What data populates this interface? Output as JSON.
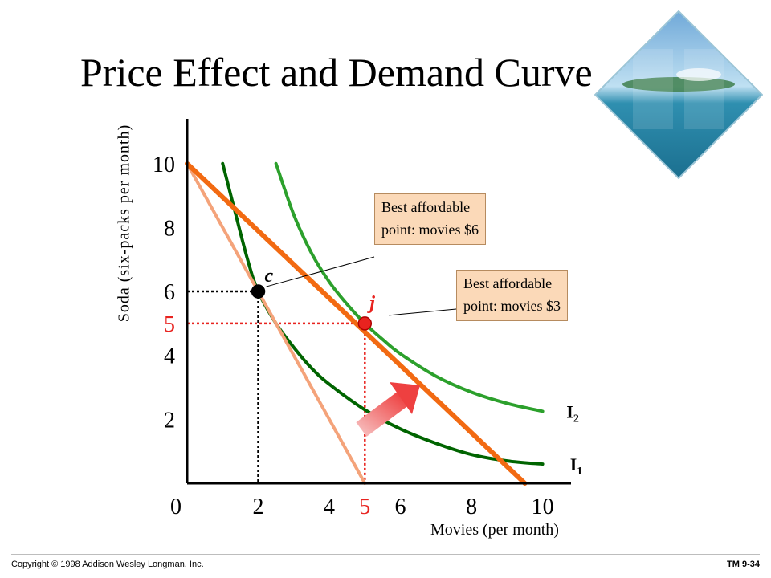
{
  "slide": {
    "title": "Price Effect and Demand Curve",
    "footer_left": "Copyright © 1998 Addison Wesley Longman, Inc.",
    "footer_right": "TM 9-34"
  },
  "colors": {
    "budget_line_3": "#f26a12",
    "budget_line_6": "#f4a37a",
    "indifference_1": "#006400",
    "indifference_2": "#2ca02c",
    "highlight_value": "#e8231f",
    "callout_fill": "#fbd9b8",
    "arrow_from": "#f6b6b6",
    "arrow_to": "#ee4040"
  },
  "chart_data": {
    "type": "line",
    "title": "Price Effect and Demand Curve",
    "xlabel": "Movies (per month)",
    "ylabel": "Soda (six-packs per month)",
    "xlim": [
      0,
      10.8
    ],
    "ylim": [
      0,
      11.4
    ],
    "x_ticks": [
      {
        "v": 0,
        "label": "0"
      },
      {
        "v": 2,
        "label": "2"
      },
      {
        "v": 4,
        "label": "4"
      },
      {
        "v": 5,
        "label": "5",
        "highlight": true
      },
      {
        "v": 6,
        "label": "6"
      },
      {
        "v": 8,
        "label": "8"
      },
      {
        "v": 10,
        "label": "10"
      }
    ],
    "y_ticks": [
      {
        "v": 2,
        "label": "2"
      },
      {
        "v": 4,
        "label": "4"
      },
      {
        "v": 5,
        "label": "5",
        "highlight": true
      },
      {
        "v": 6,
        "label": "6"
      },
      {
        "v": 8,
        "label": "8"
      },
      {
        "v": 10,
        "label": "10"
      }
    ],
    "series": [
      {
        "key": "budget_6",
        "kind": "budget",
        "x": [
          0,
          5
        ],
        "y": [
          10,
          0
        ]
      },
      {
        "key": "budget_3",
        "kind": "budget",
        "x": [
          0,
          9.5
        ],
        "y": [
          10,
          0
        ]
      },
      {
        "key": "I1",
        "name": "I1",
        "kind": "indifference",
        "x": [
          1.0,
          1.3,
          1.7,
          2.0,
          2.5,
          3.0,
          3.5,
          4.0,
          5.0,
          6.0,
          7.0,
          8.0,
          9.0,
          10.0
        ],
        "y": [
          10.0,
          8.7,
          7.0,
          6.0,
          5.0,
          4.25,
          3.6,
          3.1,
          2.3,
          1.7,
          1.25,
          0.9,
          0.7,
          0.6
        ]
      },
      {
        "key": "I2",
        "name": "I2",
        "kind": "indifference",
        "x": [
          2.5,
          3.0,
          3.5,
          4.0,
          4.5,
          5.0,
          5.5,
          6.0,
          7.0,
          8.0,
          9.0,
          10.0
        ],
        "y": [
          10.0,
          8.4,
          7.2,
          6.3,
          5.6,
          5.0,
          4.5,
          4.05,
          3.35,
          2.85,
          2.5,
          2.25
        ]
      }
    ],
    "points": [
      {
        "label": "c",
        "x": 2,
        "y": 6,
        "price": "movies $6"
      },
      {
        "label": "j",
        "x": 5,
        "y": 5,
        "price": "movies $3"
      }
    ],
    "curve_labels": [
      {
        "text": "I",
        "sub": "2",
        "x": 10.4,
        "y": 2.25
      },
      {
        "text": "I",
        "sub": "1",
        "x": 10.5,
        "y": 0.6
      }
    ],
    "callouts": [
      {
        "text": "Best affordable\npoint: movies $6",
        "target": "c"
      },
      {
        "text": "Best affordable\npoint: movies $3",
        "target": "j"
      }
    ]
  }
}
